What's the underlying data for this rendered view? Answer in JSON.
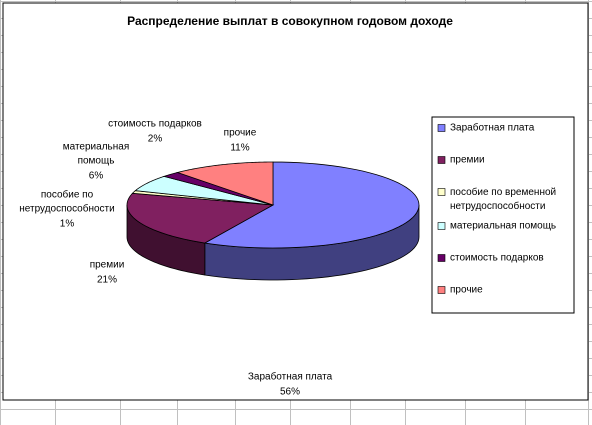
{
  "chart_data": {
    "type": "pie",
    "title": "Распределение выплат в совокупном годовом доходе",
    "categories": [
      "Заработная плата",
      "премии",
      "пособие по временной нетрудоспособности",
      "материальная помощь",
      "стоимость подарков",
      "прочие"
    ],
    "data_labels": [
      [
        "Заработная плата"
      ],
      [
        "премии"
      ],
      [
        "пособие по",
        "нетрудоспособности"
      ],
      [
        "материальная",
        "помощь"
      ],
      [
        "стоимость подарков"
      ],
      [
        "прочие"
      ]
    ],
    "values": [
      56,
      21,
      1,
      6,
      2,
      11
    ],
    "value_labels": [
      "56%",
      "21%",
      "1%",
      "6%",
      "2%",
      "11%"
    ],
    "colors": [
      "#8080ff",
      "#802060",
      "#ffffcc",
      "#ccffff",
      "#660066",
      "#ff8080"
    ],
    "legend": "right"
  }
}
